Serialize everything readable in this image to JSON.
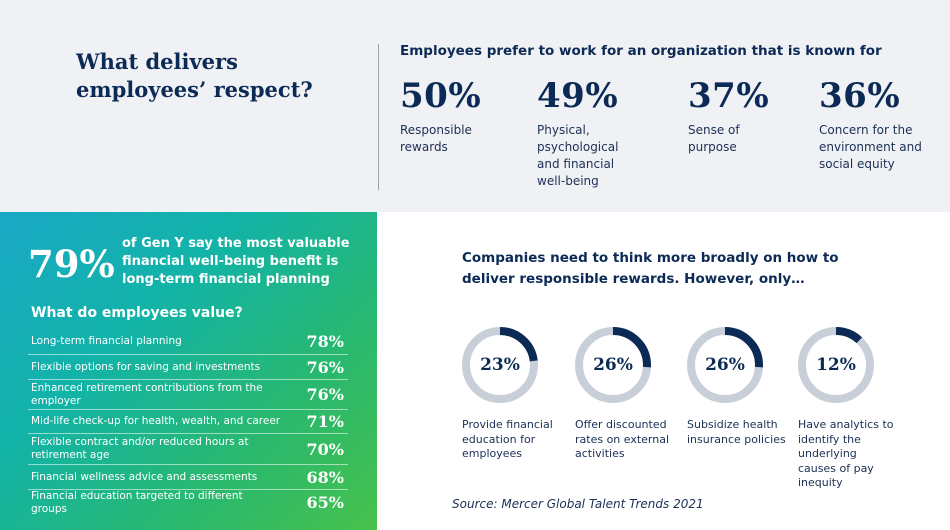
{
  "top": {
    "title": "What delivers employees’ respect?",
    "heading": "Employees prefer to work for an organization that is known for",
    "stats": [
      {
        "value": "50%",
        "label": "Responsible rewards"
      },
      {
        "value": "49%",
        "label": "Physical, psychological and financial well-being"
      },
      {
        "value": "37%",
        "label": "Sense of purpose"
      },
      {
        "value": "36%",
        "label": "Concern for the environment and social equity"
      }
    ]
  },
  "panel": {
    "big_pct": "79%",
    "big_text": "of Gen Y say the most valuable financial well-being benefit is long-term financial planning",
    "value_heading": "What do employees value?",
    "values": [
      {
        "label": "Long-term financial planning",
        "pct": "78%"
      },
      {
        "label": "Flexible options for saving and investments",
        "pct": "76%"
      },
      {
        "label": "Enhanced retirement contributions from the employer",
        "pct": "76%"
      },
      {
        "label": "Mid-life check-up for health, wealth, and career",
        "pct": "71%"
      },
      {
        "label": "Flexible contract and/or reduced hours at retirement age",
        "pct": "70%"
      },
      {
        "label": "Financial wellness advice and assessments",
        "pct": "68%"
      },
      {
        "label": "Financial education targeted to different groups",
        "pct": "65%"
      }
    ],
    "colors": {
      "gradient_start": "#1aa8c6",
      "gradient_end": "#48c24c"
    }
  },
  "rewards": {
    "heading": "Companies need to think more broadly on how to deliver responsible rewards. However, only…",
    "items": [
      {
        "value": "23%",
        "fraction": 0.23,
        "label": "Provide financial education for employees"
      },
      {
        "value": "26%",
        "fraction": 0.26,
        "label": "Offer discounted rates on external activities"
      },
      {
        "value": "26%",
        "fraction": 0.26,
        "label": "Subsidize health insurance policies"
      },
      {
        "value": "12%",
        "fraction": 0.12,
        "label": "Have analytics to identify the underlying causes of pay inequity"
      }
    ],
    "colors": {
      "ring_track": "#c9cfd9",
      "ring_fill": "#0b2a55"
    }
  },
  "source": "Source: Mercer Global Talent Trends 2021"
}
